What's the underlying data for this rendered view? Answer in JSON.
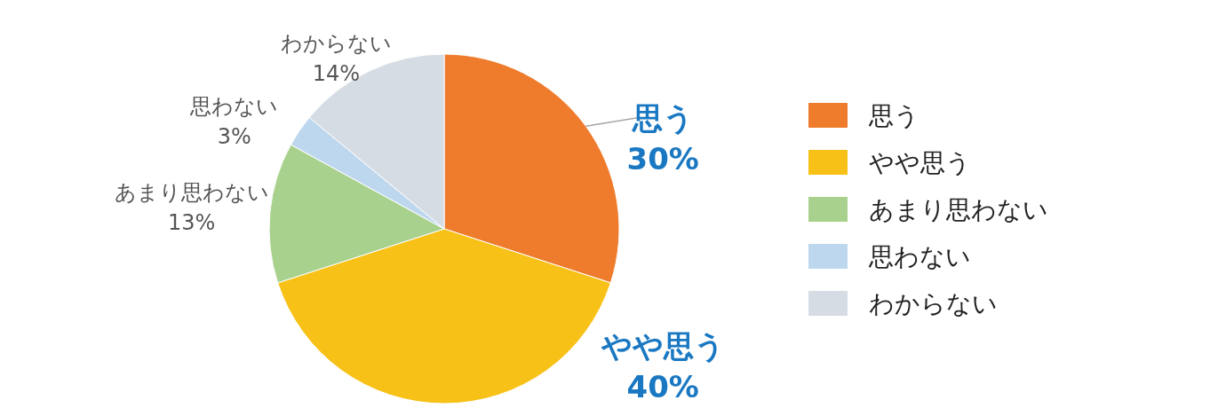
{
  "chart_data": {
    "type": "pie",
    "categories": [
      "思う",
      "やや思う",
      "あまり思わない",
      "思わない",
      "わからない"
    ],
    "values": [
      30,
      40,
      13,
      3,
      14
    ],
    "colors": [
      "#ef7b2c",
      "#f8c118",
      "#a9d18e",
      "#bdd7ee",
      "#d6dce4"
    ],
    "value_labels": [
      "30%",
      "40%",
      "13%",
      "3%",
      "14%"
    ],
    "legend": "right"
  }
}
